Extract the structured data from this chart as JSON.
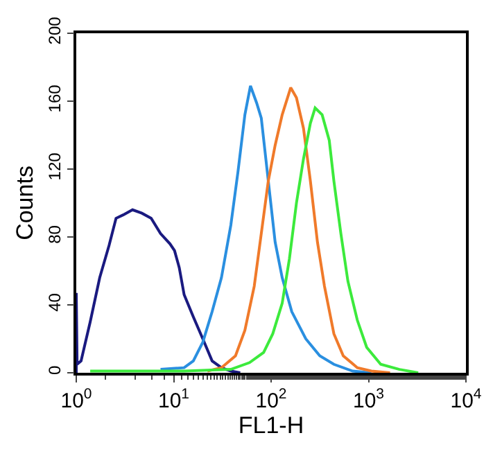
{
  "chart_data": {
    "type": "line",
    "xlabel": "FL1-H",
    "ylabel": "Counts",
    "log": "x",
    "marker": "none",
    "line_style": "solid",
    "xlim": [
      1,
      10000
    ],
    "xticks": [
      {
        "value": 1,
        "label": "10$^{0}$"
      },
      {
        "value": 10,
        "label": "10$^{1}$"
      },
      {
        "value": 100,
        "label": "10$^{2}$"
      },
      {
        "value": 1000,
        "label": "10$^{3}$"
      },
      {
        "value": 10000,
        "label": "10$^{4}$"
      }
    ],
    "ylim": [
      0,
      200
    ],
    "yticks": [
      0,
      40,
      80,
      120,
      160,
      200
    ],
    "series": [
      {
        "color": "#1a1a80",
        "x": [
          1,
          1,
          1.02,
          1.12,
          1.39,
          1.74,
          2.17,
          2.56,
          3.03,
          3.78,
          4.71,
          5.87,
          7.33,
          9.15,
          10.2,
          11.4,
          12.8,
          15.9,
          19.9,
          24.8,
          30.9,
          38.6,
          48.2
        ],
        "values": [
          0,
          47,
          5,
          7,
          30,
          56,
          75,
          91,
          93,
          96,
          94,
          91,
          82,
          76,
          72,
          62,
          46,
          33,
          20,
          7,
          3,
          1,
          0
        ]
      },
      {
        "color": "#2a8fe0",
        "x": [
          7.33,
          12.8,
          15.9,
          19.9,
          24.8,
          30.9,
          38.6,
          45.6,
          53.8,
          61.4,
          71.0,
          79.3,
          93.6,
          110,
          130,
          163,
          227,
          316,
          441,
          687,
          1069
        ],
        "values": [
          2,
          3,
          7,
          18,
          36,
          56,
          87,
          118,
          152,
          169,
          159,
          150,
          113,
          77,
          56,
          36,
          20,
          10,
          5,
          1,
          0
        ]
      },
      {
        "color": "#f07a2a",
        "x": [
          22.2,
          30.9,
          43.1,
          53.8,
          67.1,
          79.3,
          93.6,
          110,
          130,
          159,
          182,
          215,
          253,
          299,
          353,
          441,
          550,
          767,
          1069,
          1663
        ],
        "values": [
          1,
          3,
          10,
          25,
          51,
          82,
          113,
          134,
          152,
          168,
          162,
          144,
          113,
          77,
          51,
          23,
          10,
          3,
          1,
          0
        ]
      },
      {
        "color": "#3cea3c",
        "x": [
          1.39,
          12.8,
          38.6,
          60.1,
          83.8,
          104,
          130,
          154,
          182,
          215,
          253,
          283,
          334,
          395,
          441,
          520,
          614,
          767,
          957,
          1334,
          2075,
          3236
        ],
        "values": [
          1,
          1,
          2,
          6,
          12,
          23,
          41,
          67,
          100,
          126,
          147,
          156,
          152,
          137,
          113,
          82,
          54,
          31,
          15,
          5,
          2,
          0
        ]
      }
    ]
  }
}
